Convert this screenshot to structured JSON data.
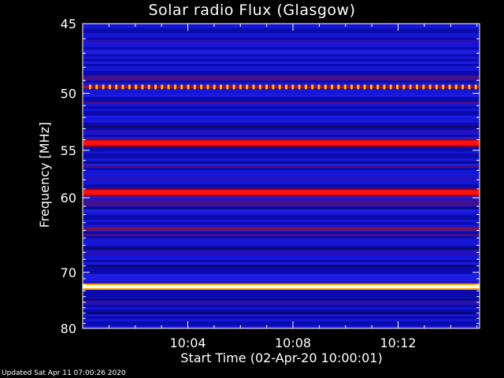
{
  "chart_data": {
    "type": "heatmap",
    "title": "Solar radio Flux (Glasgow)",
    "xlabel": "Start Time (02-Apr-20 10:00:01)",
    "ylabel": "Frequency [MHz]",
    "x_range_minutes": [
      0,
      15.1
    ],
    "y_range_mhz": [
      80,
      45
    ],
    "x_ticks": [
      {
        "minute": 4,
        "label": "10:04"
      },
      {
        "minute": 8,
        "label": "10:08"
      },
      {
        "minute": 12,
        "label": "10:12"
      }
    ],
    "y_ticks": [
      {
        "mhz": 45,
        "label": "45"
      },
      {
        "mhz": 50,
        "label": "50"
      },
      {
        "mhz": 55,
        "label": "55"
      },
      {
        "mhz": 60,
        "label": "60"
      },
      {
        "mhz": 70,
        "label": "70"
      },
      {
        "mhz": 80,
        "label": "80"
      }
    ],
    "y_minor_ticks_mhz": [
      46,
      47,
      48,
      49,
      51,
      52,
      53,
      54,
      56,
      57,
      58,
      59,
      61,
      62,
      63,
      64,
      65,
      66,
      67,
      68,
      69,
      71,
      72,
      73,
      74,
      75,
      76,
      77,
      78,
      79
    ],
    "intense_bands": [
      {
        "mhz": 49.5,
        "level": "orange-dashed"
      },
      {
        "mhz": 54.3,
        "level": "red"
      },
      {
        "mhz": 59.4,
        "level": "red"
      },
      {
        "mhz": 63.8,
        "level": "dark-red"
      },
      {
        "mhz": 72.3,
        "level": "white-yellow"
      }
    ],
    "colors": {
      "low": "#1010c8",
      "mid": "#c00000",
      "high": "#ffff80",
      "background": "#000000"
    }
  },
  "footer": {
    "updated": "Updated Sat Apr 11 07:00:26 2020"
  }
}
